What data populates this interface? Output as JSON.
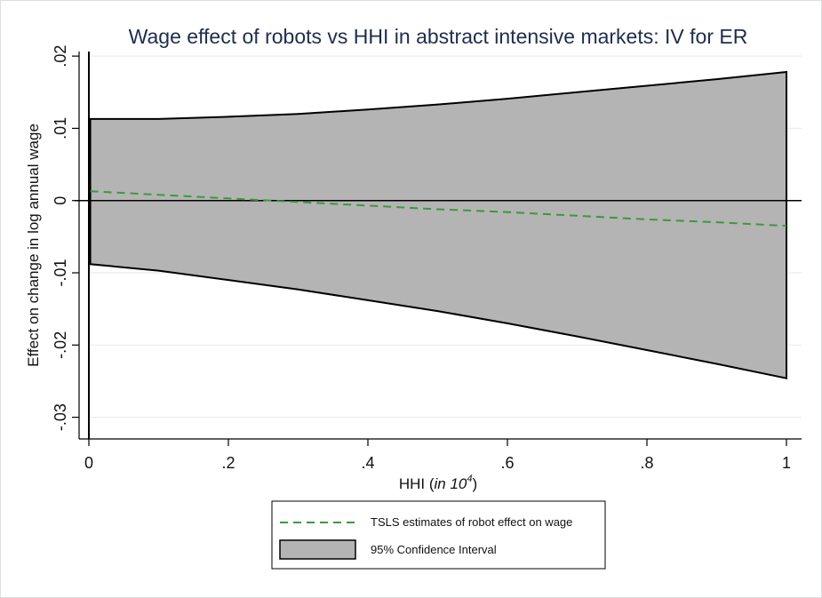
{
  "chart_data": {
    "type": "area",
    "title": "Wage effect of robots vs HHI in abstract intensive markets: IV for ER",
    "xlabel_prefix": "HHI (",
    "xlabel_italic": "in 10",
    "xlabel_sup": "4",
    "xlabel_suffix": ")",
    "ylabel": "Effect on change in log annual wage",
    "xlim": [
      0,
      1
    ],
    "ylim": [
      -0.033,
      0.021
    ],
    "x_ticks": [
      0,
      0.2,
      0.4,
      0.6,
      0.8,
      1
    ],
    "x_tick_labels": [
      "0",
      ".2",
      ".4",
      ".6",
      ".8",
      "1"
    ],
    "y_ticks": [
      -0.03,
      -0.02,
      -0.01,
      0,
      0.01,
      0.02
    ],
    "y_tick_labels": [
      "-.03",
      "-.02",
      "-.01",
      "0",
      ".01",
      ".02"
    ],
    "grid": true,
    "reference_lines": {
      "x": 0,
      "y": 0
    },
    "x": [
      0.002,
      0.1,
      0.2,
      0.3,
      0.4,
      0.5,
      0.6,
      0.7,
      0.8,
      0.9,
      1.0
    ],
    "series": [
      {
        "name": "TSLS estimates of robot effect on wage",
        "style": "dashed-line",
        "color": "#3a9a3a",
        "values": [
          0.0013,
          0.0008,
          0.0003,
          -0.0002,
          -0.0007,
          -0.0012,
          -0.0016,
          -0.0021,
          -0.0026,
          -0.003,
          -0.0035
        ]
      },
      {
        "name": "95% Confidence Interval",
        "style": "band",
        "color": "#b4b4b4",
        "upper": [
          0.0113,
          0.0113,
          0.0116,
          0.012,
          0.0126,
          0.0133,
          0.0141,
          0.015,
          0.0159,
          0.0168,
          0.0178
        ],
        "lower": [
          -0.0088,
          -0.0097,
          -0.011,
          -0.0123,
          -0.0138,
          -0.0153,
          -0.017,
          -0.0188,
          -0.0207,
          -0.0226,
          -0.0246
        ]
      }
    ],
    "legend_position": "bottom-center"
  }
}
